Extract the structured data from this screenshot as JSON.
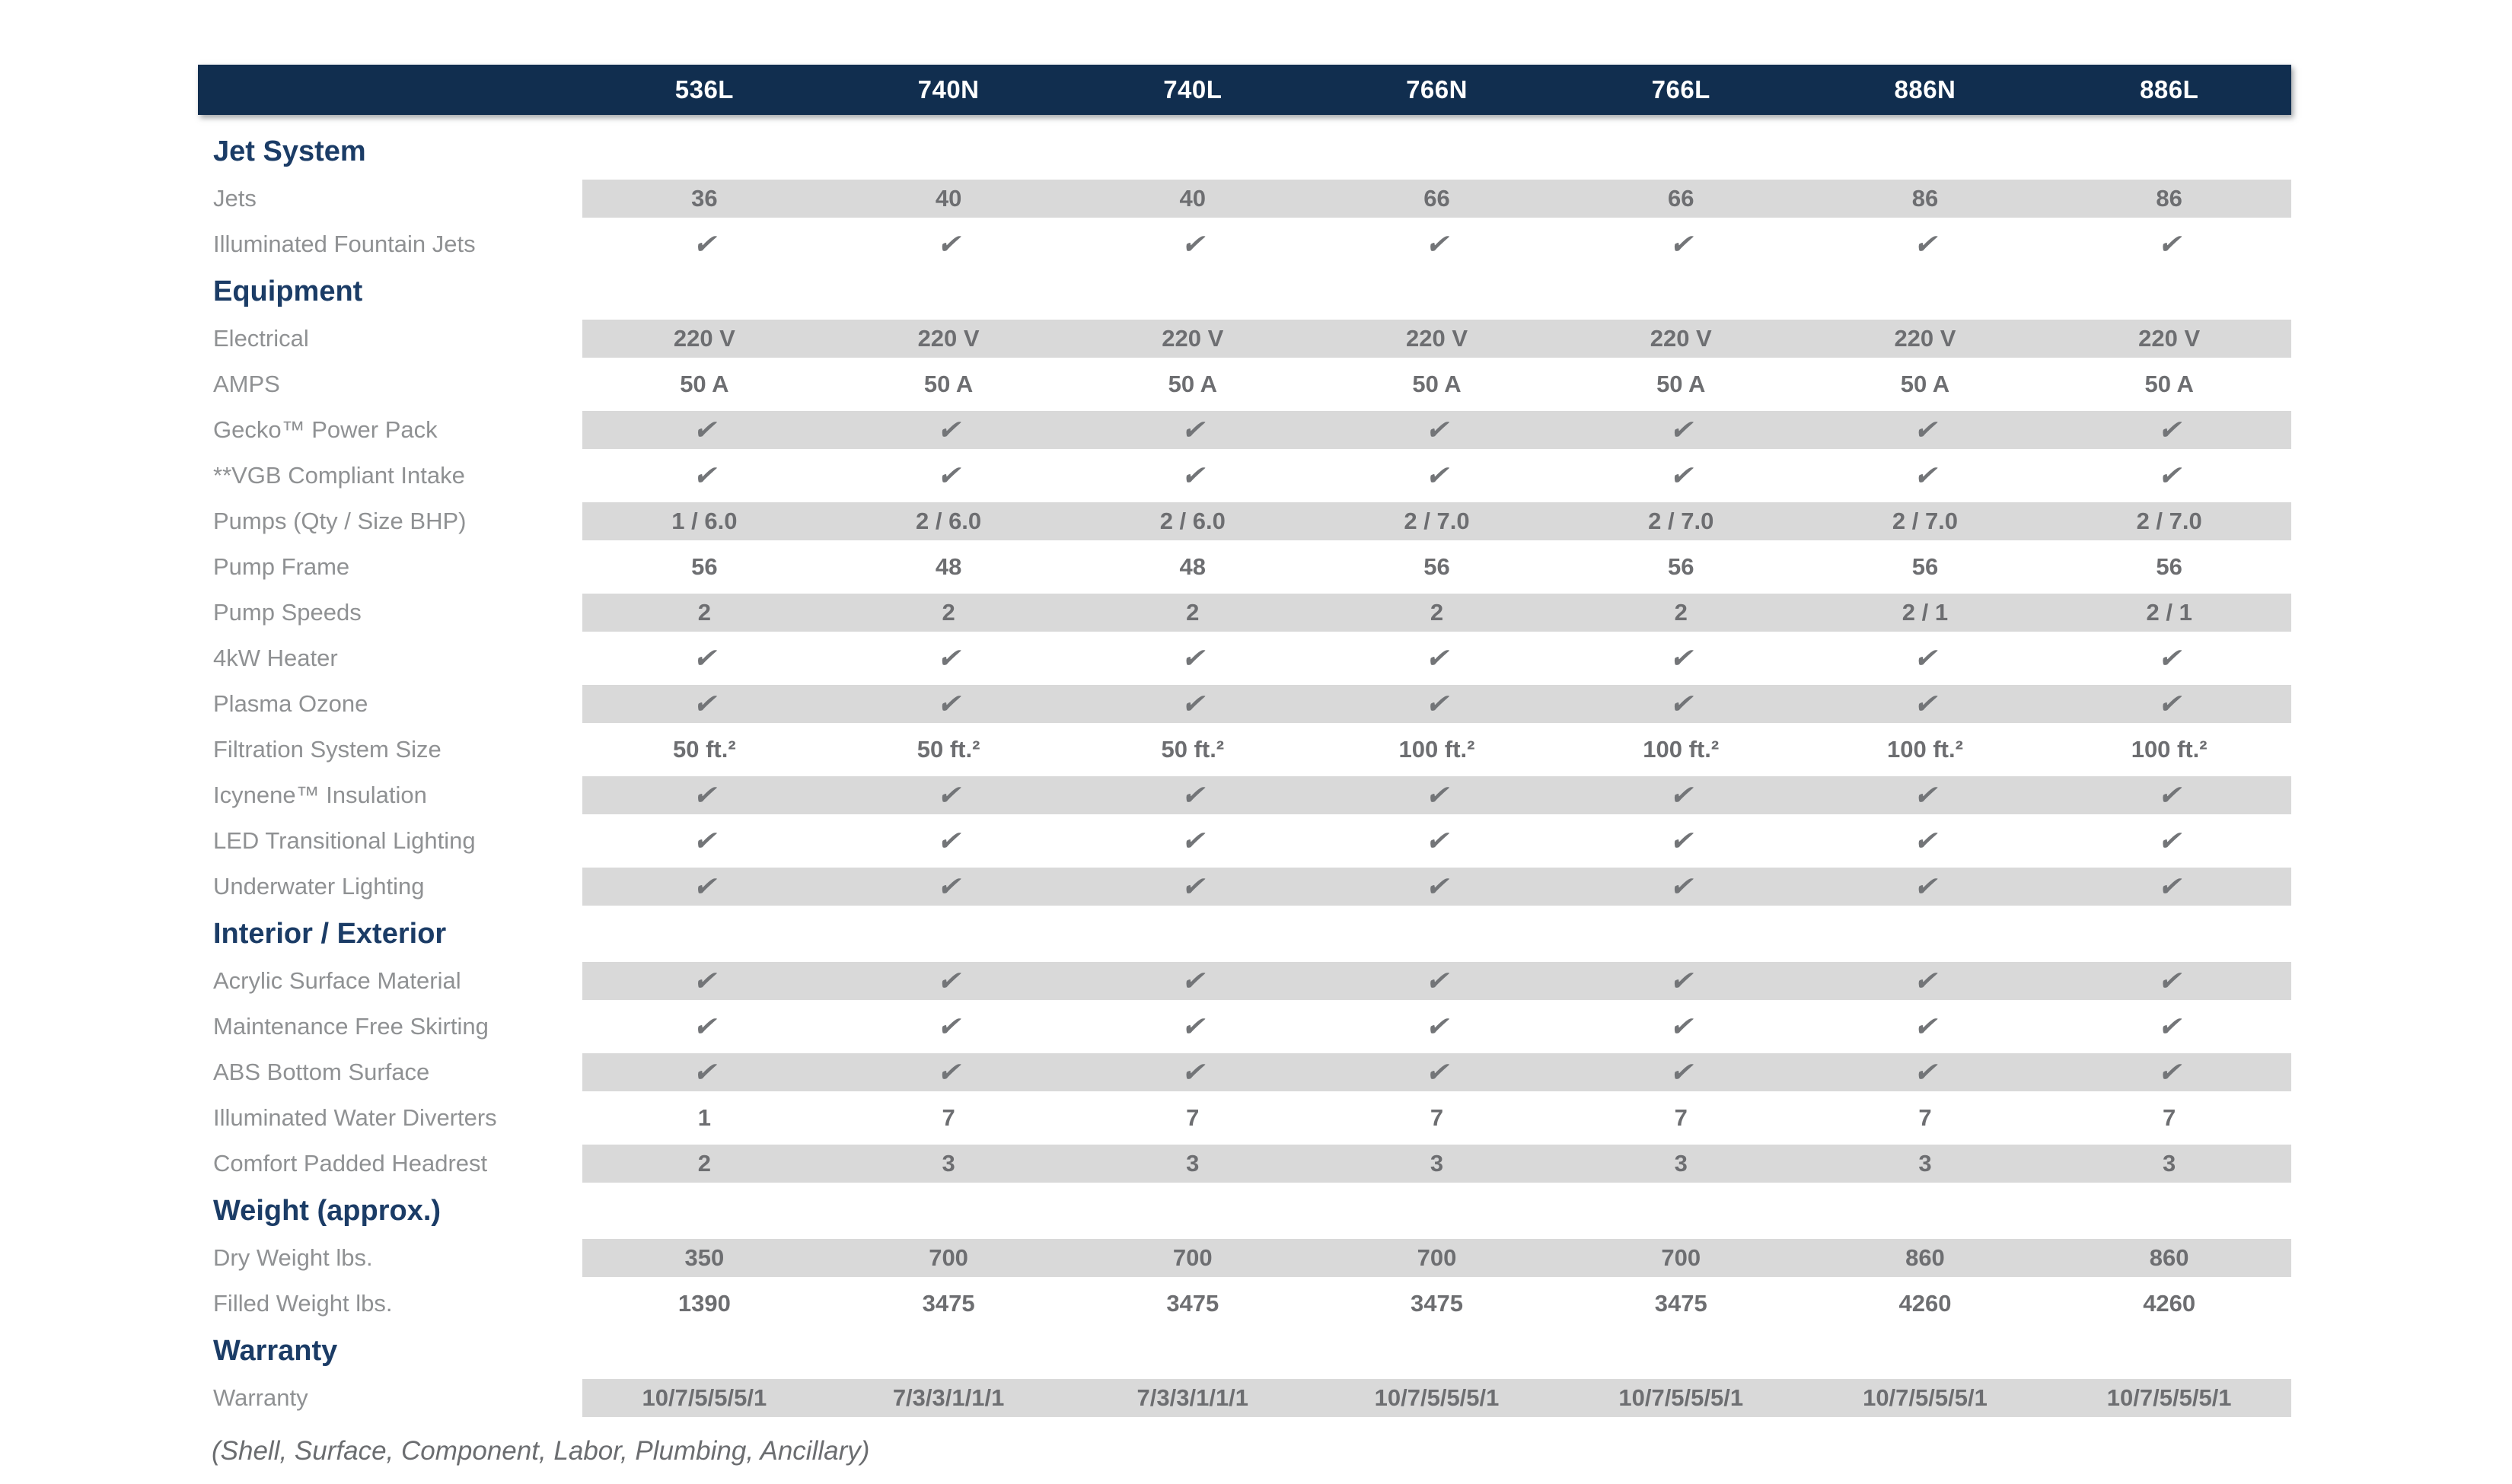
{
  "table": {
    "models": [
      "536L",
      "740N",
      "740L",
      "766N",
      "766L",
      "886N",
      "886L"
    ],
    "sections": [
      {
        "title": "Jet System",
        "rows": [
          {
            "label": "Jets",
            "shaded": true,
            "values": [
              "36",
              "40",
              "40",
              "66",
              "66",
              "86",
              "86"
            ]
          },
          {
            "label": "Illuminated Fountain Jets",
            "shaded": false,
            "check": true
          }
        ]
      },
      {
        "title": "Equipment",
        "rows": [
          {
            "label": "Electrical",
            "shaded": true,
            "values": [
              "220 V",
              "220 V",
              "220 V",
              "220 V",
              "220 V",
              "220 V",
              "220 V"
            ]
          },
          {
            "label": "AMPS",
            "shaded": false,
            "values": [
              "50 A",
              "50 A",
              "50 A",
              "50 A",
              "50 A",
              "50 A",
              "50 A"
            ]
          },
          {
            "label": "Gecko™ Power Pack",
            "shaded": true,
            "check": true
          },
          {
            "label": "**VGB Compliant Intake",
            "shaded": false,
            "check": true
          },
          {
            "label": "Pumps (Qty / Size BHP)",
            "shaded": true,
            "values": [
              "1 / 6.0",
              "2 / 6.0",
              "2 / 6.0",
              "2 / 7.0",
              "2 / 7.0",
              "2 / 7.0",
              "2 / 7.0"
            ]
          },
          {
            "label": "Pump Frame",
            "shaded": false,
            "values": [
              "56",
              "48",
              "48",
              "56",
              "56",
              "56",
              "56"
            ]
          },
          {
            "label": "Pump Speeds",
            "shaded": true,
            "values": [
              "2",
              "2",
              "2",
              "2",
              "2",
              "2 / 1",
              "2 / 1"
            ]
          },
          {
            "label": "4kW Heater",
            "shaded": false,
            "check": true
          },
          {
            "label": "Plasma Ozone",
            "shaded": true,
            "check": true
          },
          {
            "label": "Filtration System Size",
            "shaded": false,
            "values": [
              "50 ft.²",
              "50 ft.²",
              "50 ft.²",
              "100 ft.²",
              "100 ft.²",
              "100 ft.²",
              "100 ft.²"
            ]
          },
          {
            "label": "Icynene™ Insulation",
            "shaded": true,
            "check": true
          },
          {
            "label": "LED Transitional Lighting",
            "shaded": false,
            "check": true
          },
          {
            "label": "Underwater Lighting",
            "shaded": true,
            "check": true
          }
        ]
      },
      {
        "title": "Interior / Exterior",
        "rows": [
          {
            "label": "Acrylic Surface Material",
            "shaded": true,
            "check": true
          },
          {
            "label": "Maintenance Free Skirting",
            "shaded": false,
            "check": true
          },
          {
            "label": "ABS Bottom Surface",
            "shaded": true,
            "check": true
          },
          {
            "label": "Illuminated Water Diverters",
            "shaded": false,
            "values": [
              "1",
              "7",
              "7",
              "7",
              "7",
              "7",
              "7"
            ]
          },
          {
            "label": "Comfort Padded Headrest",
            "shaded": true,
            "values": [
              "2",
              "3",
              "3",
              "3",
              "3",
              "3",
              "3"
            ]
          }
        ]
      },
      {
        "title": "Weight (approx.)",
        "rows": [
          {
            "label": "Dry Weight lbs.",
            "shaded": true,
            "values": [
              "350",
              "700",
              "700",
              "700",
              "700",
              "860",
              "860"
            ]
          },
          {
            "label": "Filled Weight lbs.",
            "shaded": false,
            "values": [
              "1390",
              "3475",
              "3475",
              "3475",
              "3475",
              "4260",
              "4260"
            ]
          }
        ]
      },
      {
        "title": "Warranty",
        "rows": [
          {
            "label": "Warranty",
            "shaded": true,
            "values": [
              "10/7/5/5/5/1",
              "7/3/3/1/1/1",
              "7/3/3/1/1/1",
              "10/7/5/5/5/1",
              "10/7/5/5/5/1",
              "10/7/5/5/5/1",
              "10/7/5/5/5/1"
            ]
          }
        ]
      }
    ],
    "footnote": "(Shell, Surface, Component, Labor, Plumbing, Ancillary)"
  },
  "icons": {
    "check": "✔"
  },
  "colors": {
    "header_bg": "#112e4f",
    "header_text": "#ffffff",
    "section_title": "#1b3c66",
    "stripe": "#d9d9d9",
    "label_text": "#8f9193",
    "value_text": "#6d6e71",
    "check_color": "#737578",
    "footnote_color": "#6b6d70"
  }
}
